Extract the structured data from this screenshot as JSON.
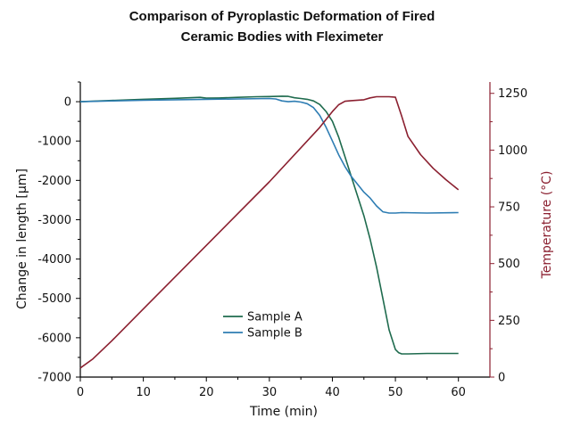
{
  "chart_data": {
    "type": "line",
    "title_lines": [
      "Comparison of Pyroplastic Deformation of Fired",
      "Ceramic Bodies with Fleximeter"
    ],
    "xlabel": "Time (min)",
    "ylabel": "Change in length [µm]",
    "y2label": "Temperature (°C)",
    "xlim": [
      0,
      65
    ],
    "ylim": [
      -7000,
      500
    ],
    "y2lim": [
      0,
      1300
    ],
    "xticks": [
      "0",
      "10",
      "20",
      "30",
      "40",
      "50",
      "60"
    ],
    "yticks": [
      "0",
      "-1000",
      "-2000",
      "-3000",
      "-4000",
      "-5000",
      "-6000",
      "-7000"
    ],
    "y2ticks": [
      "0",
      "250",
      "500",
      "750",
      "1000",
      "1250"
    ],
    "grid": false,
    "legend_position": "center-left",
    "series": [
      {
        "name": "Sample A",
        "axis": "left",
        "color": "#1f6b4e",
        "x": [
          0,
          5,
          10,
          15,
          19,
          20,
          22,
          25,
          28,
          30,
          32,
          33,
          34,
          35,
          36,
          37,
          38,
          39,
          40,
          41,
          42,
          43,
          44,
          45,
          46,
          47,
          48,
          49,
          50,
          50.5,
          51,
          52,
          55,
          58,
          60
        ],
        "y": [
          0,
          30,
          60,
          85,
          110,
          90,
          95,
          110,
          125,
          130,
          140,
          135,
          100,
          80,
          60,
          20,
          -70,
          -250,
          -500,
          -900,
          -1400,
          -1900,
          -2400,
          -2900,
          -3500,
          -4200,
          -5000,
          -5800,
          -6300,
          -6380,
          -6410,
          -6410,
          -6400,
          -6400,
          -6400
        ]
      },
      {
        "name": "Sample B",
        "axis": "left",
        "color": "#2e7db3",
        "x": [
          0,
          5,
          10,
          15,
          20,
          25,
          30,
          31,
          32,
          33,
          34,
          35,
          36,
          37,
          38,
          39,
          40,
          41,
          42,
          43,
          44,
          45,
          46,
          47,
          48,
          49,
          50,
          51,
          55,
          60
        ],
        "y": [
          0,
          20,
          35,
          50,
          60,
          70,
          80,
          70,
          20,
          0,
          10,
          -10,
          -50,
          -150,
          -350,
          -650,
          -1000,
          -1350,
          -1650,
          -1900,
          -2100,
          -2300,
          -2450,
          -2650,
          -2800,
          -2830,
          -2830,
          -2820,
          -2830,
          -2820
        ]
      },
      {
        "name": "Temperature",
        "axis": "right",
        "color": "#8b2030",
        "x": [
          0,
          2,
          5,
          10,
          20,
          30,
          38,
          40,
          41,
          42,
          43,
          44,
          45,
          46,
          47,
          48,
          49,
          50,
          51,
          52,
          54,
          56,
          58,
          60
        ],
        "y": [
          40,
          80,
          160,
          300,
          580,
          860,
          1100,
          1170,
          1200,
          1215,
          1218,
          1220,
          1222,
          1230,
          1235,
          1235,
          1235,
          1233,
          1150,
          1060,
          980,
          920,
          870,
          825
        ]
      }
    ]
  }
}
